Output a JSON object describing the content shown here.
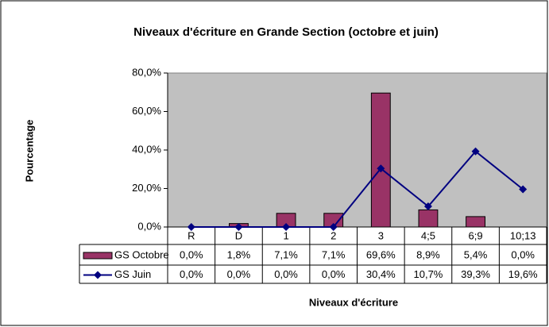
{
  "chart_data": {
    "type": "bar",
    "title": "Niveaux d'écriture en Grande Section (octobre et juin)",
    "y_label": "Pourcentage",
    "x_label": "Niveaux d'écriture",
    "categories": [
      "R",
      "D",
      "1",
      "2",
      "3",
      "4;5",
      "6;9",
      "10;13"
    ],
    "series": [
      {
        "name": "GS Octobre",
        "type": "bar",
        "color": "#993366",
        "values": [
          0,
          1.8,
          7.1,
          7.1,
          69.6,
          8.9,
          5.4,
          0
        ],
        "value_labels": [
          "0,0%",
          "1,8%",
          "7,1%",
          "7,1%",
          "69,6%",
          "8,9%",
          "5,4%",
          "0,0%"
        ]
      },
      {
        "name": "GS Juin",
        "type": "line",
        "color": "#000080",
        "values": [
          0,
          0,
          0,
          0,
          30.4,
          10.7,
          39.3,
          19.6
        ],
        "value_labels": [
          "0,0%",
          "0,0%",
          "0,0%",
          "0,0%",
          "30,4%",
          "10,7%",
          "39,3%",
          "19,6%"
        ]
      }
    ],
    "ylim": [
      0,
      80
    ],
    "yticks": [
      {
        "value": 0,
        "label": "0,0%"
      },
      {
        "value": 20,
        "label": "20,0%"
      },
      {
        "value": 40,
        "label": "40,0%"
      },
      {
        "value": 60,
        "label": "60,0%"
      },
      {
        "value": 80,
        "label": "80,0%"
      }
    ],
    "plot_background": "#c0c0c0"
  }
}
